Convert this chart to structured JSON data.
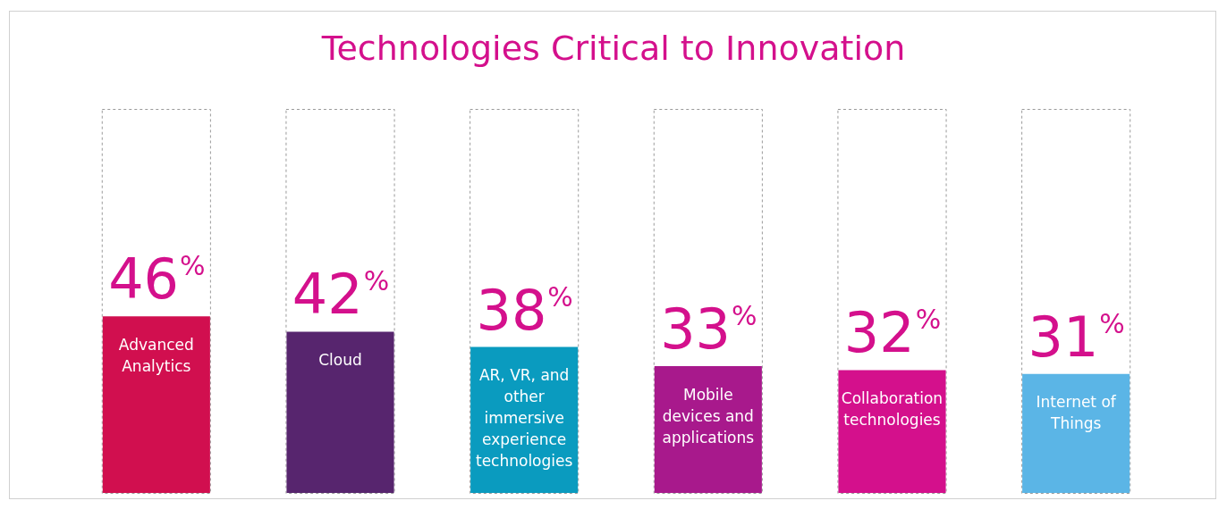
{
  "chart_data": {
    "type": "bar",
    "title": "Technologies Critical to Innovation",
    "categories": [
      "Advanced Analytics",
      "Cloud",
      "AR, VR, and other immersive experience technologies",
      "Mobile devices and applications",
      "Collaboration technologies",
      "Internet of Things"
    ],
    "values": [
      46,
      42,
      38,
      33,
      32,
      31
    ],
    "colors": [
      "#d10f4f",
      "#57256e",
      "#0a9bbf",
      "#a8198c",
      "#d4108c",
      "#5bb5e6"
    ],
    "value_labels": [
      "46%",
      "42%",
      "38%",
      "33%",
      "32%",
      "31%"
    ],
    "ylim": [
      0,
      100
    ],
    "tick_labels": "x"
  }
}
